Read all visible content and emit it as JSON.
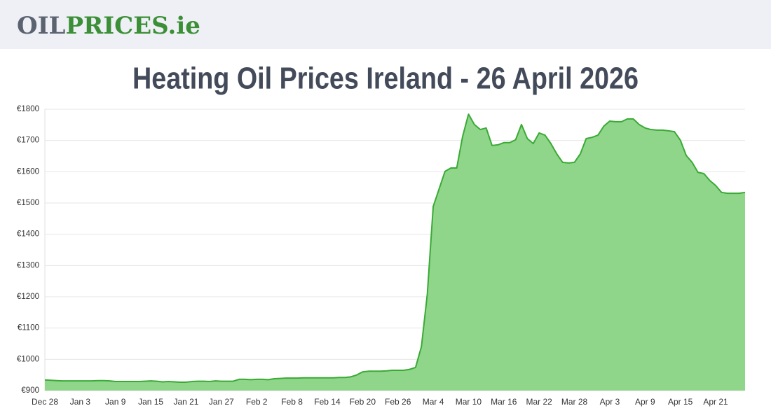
{
  "header": {
    "logo_parts": [
      "OIL",
      "PRICES.ie"
    ]
  },
  "chart_data": {
    "type": "area",
    "title": "Heating Oil Prices Ireland - 26 April 2026",
    "categories": [
      "Dec 28",
      null,
      null,
      null,
      null,
      null,
      "Jan 3",
      null,
      null,
      null,
      null,
      null,
      "Jan 9",
      null,
      null,
      null,
      null,
      null,
      "Jan 15",
      null,
      null,
      null,
      null,
      null,
      "Jan 21",
      null,
      null,
      null,
      null,
      null,
      "Jan 27",
      null,
      null,
      null,
      null,
      null,
      "Feb 2",
      null,
      null,
      null,
      null,
      null,
      "Feb 8",
      null,
      null,
      null,
      null,
      null,
      "Feb 14",
      null,
      null,
      null,
      null,
      null,
      "Feb 20",
      null,
      null,
      null,
      null,
      null,
      "Feb 26",
      null,
      null,
      null,
      null,
      null,
      "Mar 4",
      null,
      null,
      null,
      null,
      null,
      "Mar 10",
      null,
      null,
      null,
      null,
      null,
      "Mar 16",
      null,
      null,
      null,
      null,
      null,
      "Mar 22",
      null,
      null,
      null,
      null,
      null,
      "Mar 28",
      null,
      null,
      null,
      null,
      null,
      "Apr 3",
      null,
      null,
      null,
      null,
      null,
      "Apr 9",
      null,
      null,
      null,
      null,
      null,
      "Apr 15",
      null,
      null,
      null,
      null,
      null,
      "Apr 21",
      null,
      null,
      null,
      null,
      null
    ],
    "values": [
      934,
      933,
      932,
      931,
      931,
      931,
      931,
      931,
      931,
      932,
      932,
      931,
      929,
      929,
      929,
      929,
      929,
      930,
      931,
      930,
      928,
      929,
      928,
      927,
      927,
      929,
      930,
      930,
      929,
      931,
      930,
      930,
      930,
      936,
      936,
      935,
      936,
      936,
      935,
      938,
      939,
      940,
      940,
      940,
      941,
      941,
      941,
      941,
      941,
      941,
      942,
      942,
      944,
      950,
      960,
      962,
      962,
      962,
      963,
      965,
      965,
      965,
      968,
      974,
      1041,
      1209,
      1489,
      1545,
      1601,
      1612,
      1612,
      1713,
      1784,
      1751,
      1735,
      1740,
      1684,
      1686,
      1693,
      1693,
      1702,
      1751,
      1706,
      1690,
      1724,
      1717,
      1690,
      1657,
      1630,
      1628,
      1630,
      1657,
      1706,
      1710,
      1717,
      1746,
      1762,
      1760,
      1760,
      1769,
      1769,
      1751,
      1740,
      1735,
      1733,
      1733,
      1731,
      1728,
      1701,
      1652,
      1630,
      1598,
      1594,
      1572,
      1556,
      1534,
      1531,
      1531,
      1531,
      1534
    ],
    "color": "#3aaa35",
    "fill_color": "#8fd68b",
    "ylim": [
      900,
      1800
    ],
    "yticks": [
      {
        "value": 900,
        "label": "€900"
      },
      {
        "value": 1000,
        "label": "€1000"
      },
      {
        "value": 1100,
        "label": "€1100"
      },
      {
        "value": 1200,
        "label": "€1200"
      },
      {
        "value": 1300,
        "label": "€1300"
      },
      {
        "value": 1400,
        "label": "€1400"
      },
      {
        "value": 1500,
        "label": "€1500"
      },
      {
        "value": 1600,
        "label": "€1600"
      },
      {
        "value": 1700,
        "label": "€1700"
      },
      {
        "value": 1800,
        "label": "€1800"
      }
    ],
    "grid": true
  }
}
